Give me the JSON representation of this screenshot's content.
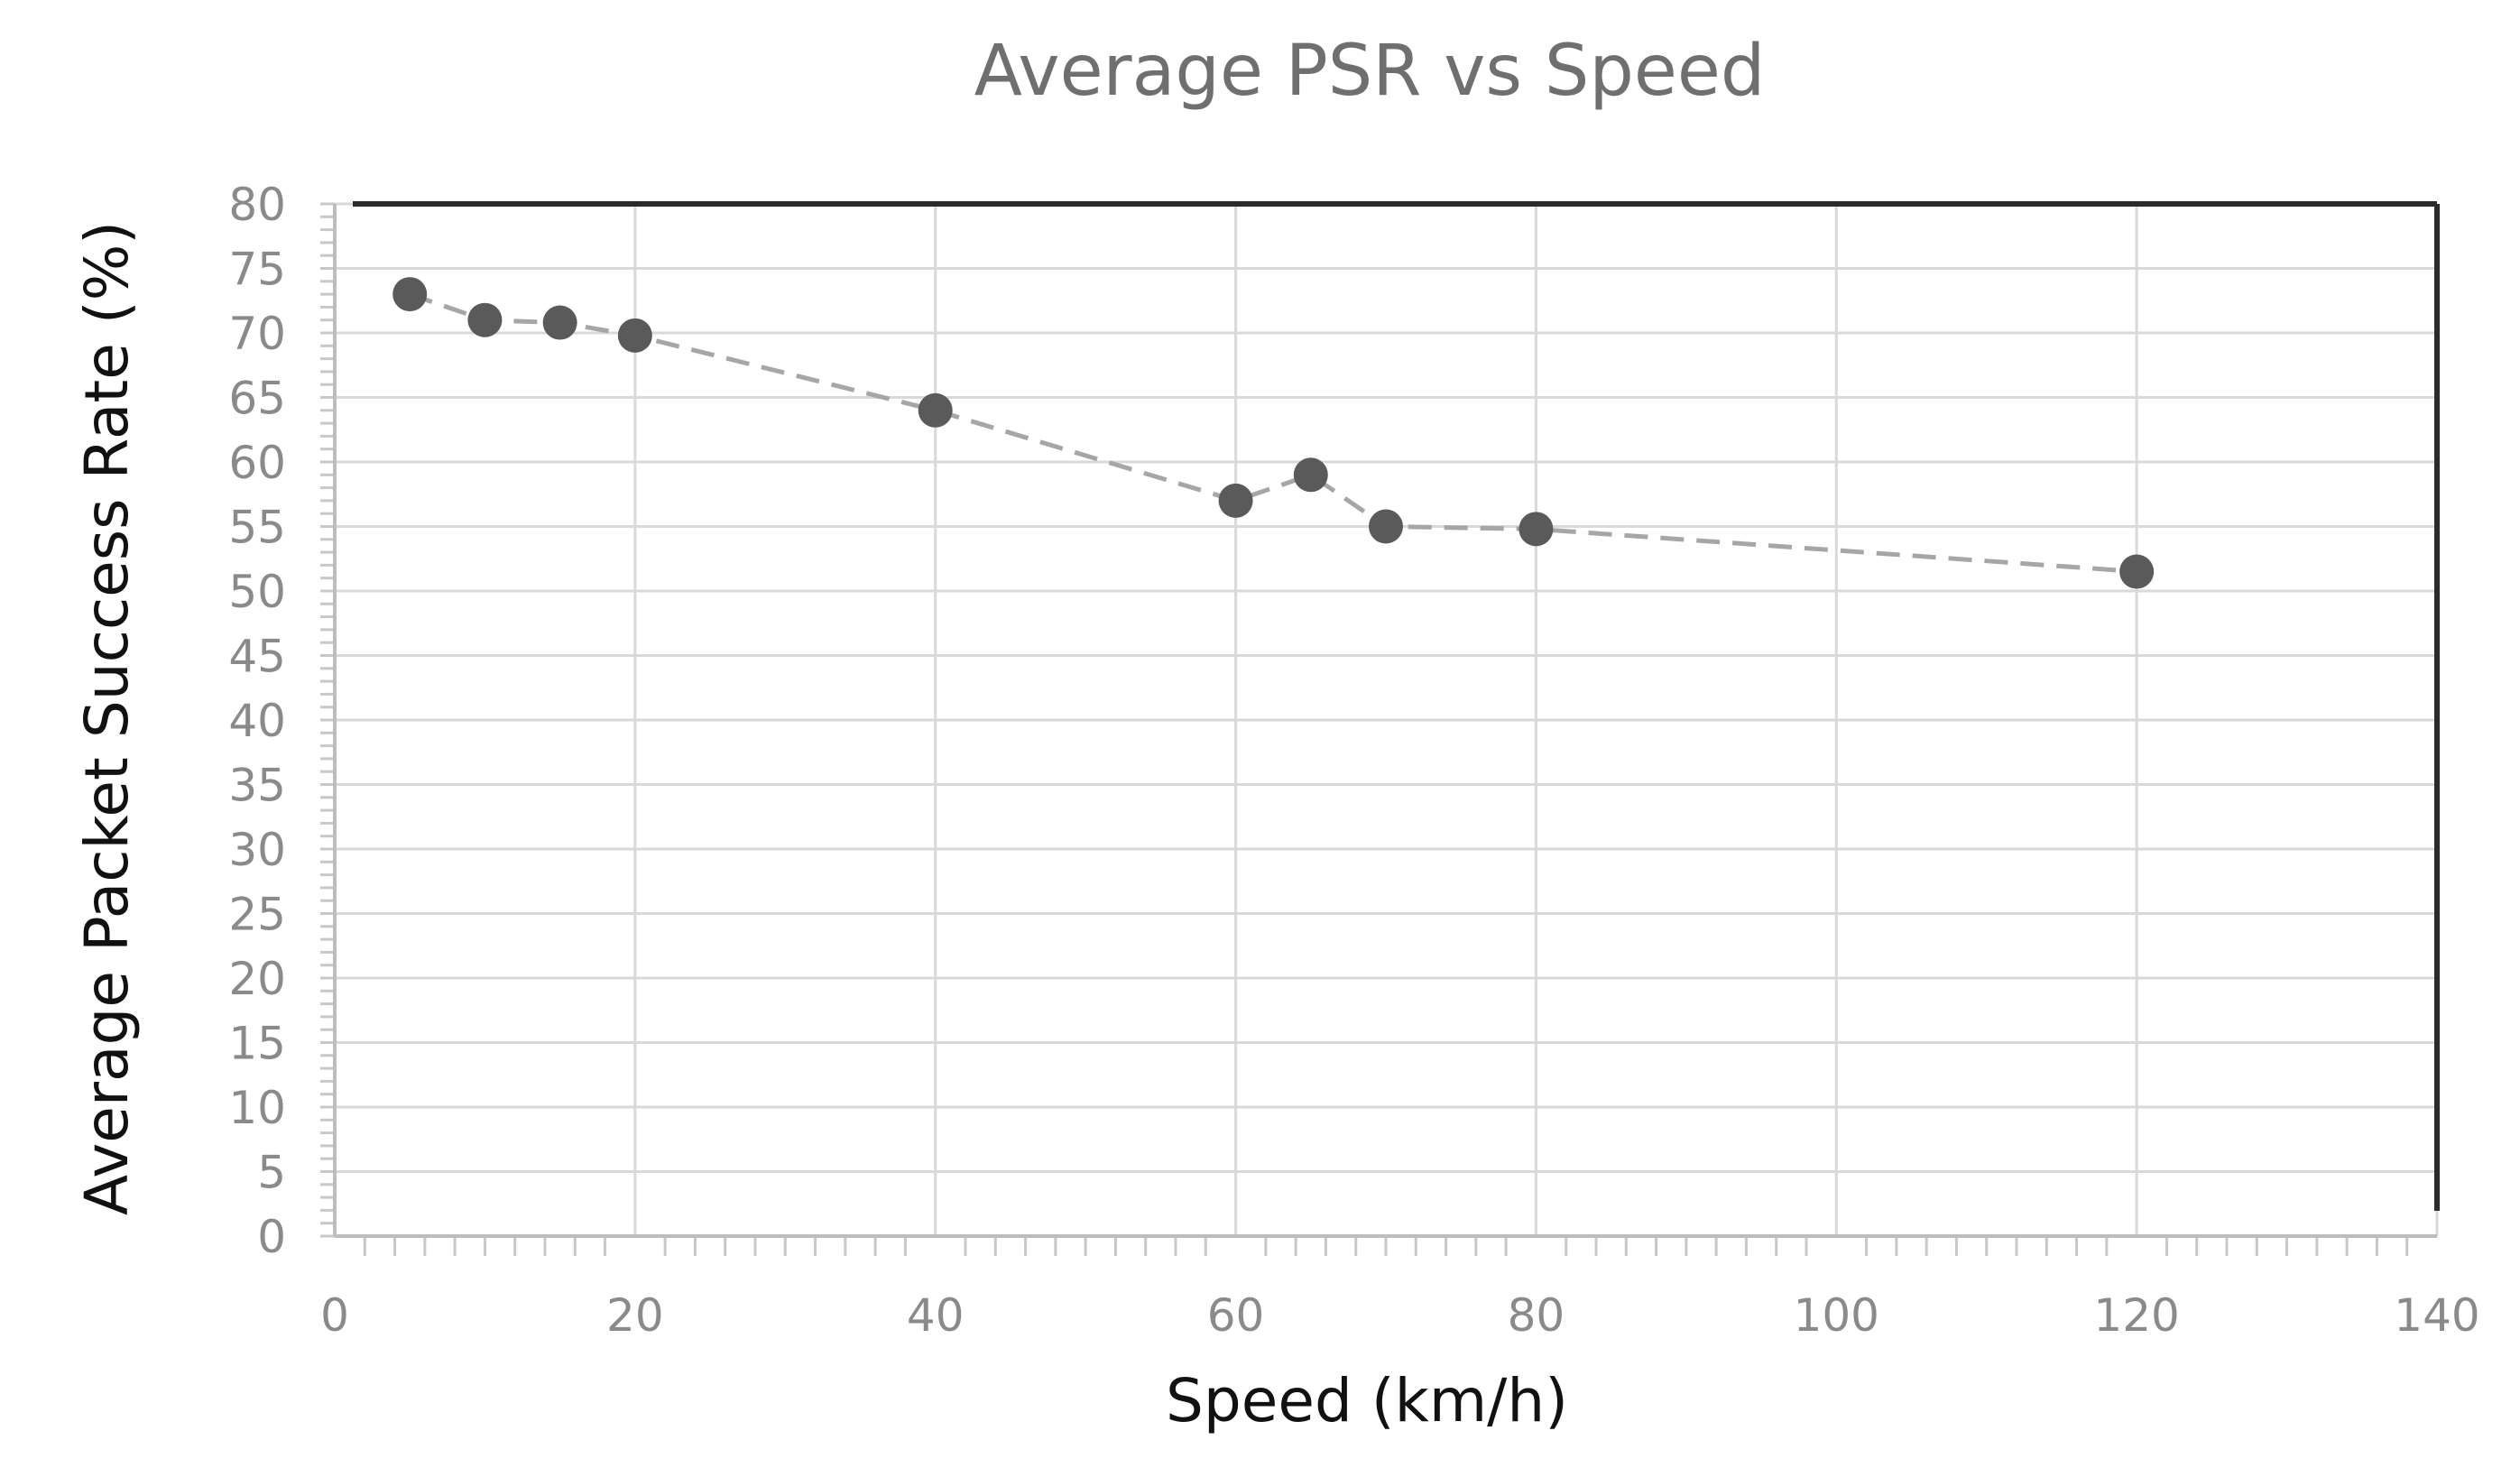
{
  "chart_data": {
    "type": "scatter",
    "title": "Average PSR vs Speed",
    "xlabel": "Speed (km/h)",
    "ylabel": "Average Packet  Success Rate (%)",
    "xlim": [
      0,
      140
    ],
    "ylim": [
      0,
      80
    ],
    "x_ticks": [
      0,
      20,
      40,
      60,
      80,
      100,
      120,
      140
    ],
    "y_ticks": [
      0,
      5,
      10,
      15,
      20,
      25,
      30,
      35,
      40,
      45,
      50,
      55,
      60,
      65,
      70,
      75,
      80
    ],
    "grid": true,
    "line_style": "dashed",
    "marker_color": "#5a5a5a",
    "line_color": "#a6a6a6",
    "series": [
      {
        "name": "Average PSR",
        "x": [
          5,
          10,
          15,
          20,
          40,
          60,
          65,
          70,
          80,
          120
        ],
        "y": [
          73,
          71,
          70.8,
          69.8,
          64,
          57,
          59,
          55,
          54.8,
          51.5
        ]
      }
    ]
  }
}
